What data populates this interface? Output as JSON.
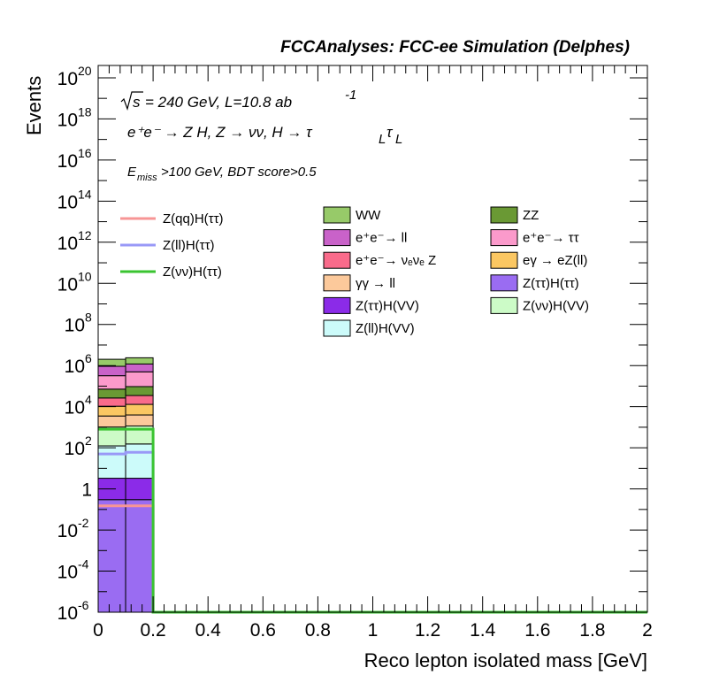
{
  "chart_data": {
    "type": "bar",
    "title": "FCCAnalyses: FCC-ee Simulation (Delphes)",
    "xlabel": "Reco lepton isolated mass [GeV]",
    "ylabel": "Events",
    "xlim": [
      0,
      2
    ],
    "ylim_log10": [
      -6,
      20.6
    ],
    "log_y": true,
    "x_ticks": [
      "0",
      "0.2",
      "0.4",
      "0.6",
      "0.8",
      "1",
      "1.2",
      "1.4",
      "1.6",
      "1.8",
      "2"
    ],
    "y_ticks": [
      {
        "exp": -6,
        "base": "10",
        "sup": "-6"
      },
      {
        "exp": -4,
        "base": "10",
        "sup": "-4"
      },
      {
        "exp": -2,
        "base": "10",
        "sup": "-2"
      },
      {
        "exp": 0,
        "base": "1",
        "sup": ""
      },
      {
        "exp": 2,
        "base": "10",
        "sup": "2"
      },
      {
        "exp": 4,
        "base": "10",
        "sup": "4"
      },
      {
        "exp": 6,
        "base": "10",
        "sup": "6"
      },
      {
        "exp": 8,
        "base": "10",
        "sup": "8"
      },
      {
        "exp": 10,
        "base": "10",
        "sup": "10"
      },
      {
        "exp": 12,
        "base": "10",
        "sup": "12"
      },
      {
        "exp": 14,
        "base": "10",
        "sup": "14"
      },
      {
        "exp": 16,
        "base": "10",
        "sup": "16"
      },
      {
        "exp": 18,
        "base": "10",
        "sup": "18"
      },
      {
        "exp": 20,
        "base": "10",
        "sup": "20"
      }
    ],
    "bins": [
      [
        0.0,
        0.1
      ],
      [
        0.1,
        0.2
      ]
    ],
    "stack": [
      {
        "name": "Z(ττ)H(ττ)",
        "color": "#9a6cf2",
        "values": [
          0.3,
          0.3
        ]
      },
      {
        "name": "Z(ττ)H(VV)",
        "color": "#8b2be8",
        "values": [
          3,
          3
        ]
      },
      {
        "name": "Z(ll)H(VV)",
        "color": "#ccfbfa",
        "values": [
          120,
          150
        ]
      },
      {
        "name": "Z(νν)H(VV)",
        "color": "#ccfbc7",
        "values": [
          900,
          1000
        ]
      },
      {
        "name": "γγ → ll",
        "color": "#fcc99b",
        "values": [
          2500,
          2800
        ]
      },
      {
        "name": "eγ → eZ(ll)",
        "color": "#fbc762",
        "values": [
          7000,
          9000
        ]
      },
      {
        "name": "e⁺e⁻→ νₑνₑ Z",
        "color": "#f96b8b",
        "values": [
          16000,
          22000
        ]
      },
      {
        "name": "ZZ",
        "color": "#6a9934",
        "values": [
          45000,
          60000
        ]
      },
      {
        "name": "e⁺e⁻→ ττ",
        "color": "#fb9acb",
        "values": [
          250000,
          400000
        ]
      },
      {
        "name": "e⁺e⁻→ ll",
        "color": "#c962c9",
        "values": [
          600000,
          700000
        ]
      },
      {
        "name": "WW",
        "color": "#97ca69",
        "values": [
          1100000,
          1200000
        ]
      }
    ],
    "signals": [
      {
        "name": "Z(qq)H(ττ)",
        "color": "#f79595",
        "values": [
          0.15,
          0.15
        ]
      },
      {
        "name": "Z(ll)H(ττ)",
        "color": "#9999f7",
        "values": [
          50,
          60
        ]
      },
      {
        "name": "Z(νν)H(ττ)",
        "color": "#3ac431",
        "values": [
          800,
          800
        ]
      }
    ],
    "annotations": {
      "sqrt_s": "s",
      "lumi": "= 240 GeV, L=10.8 ab",
      "lumi_exp": "-1",
      "process": "e⁺e⁻ → Z H, Z → νν, H → τ",
      "process_sub1": "L",
      "process_tau2": "τ",
      "process_sub2": "L",
      "cut_E": "E",
      "cut_sub": "miss",
      "cut_rest": ">100 GeV, BDT score>0.5"
    },
    "legend_signal": [
      {
        "label": "Z(qq)H(ττ)",
        "color": "#f79595"
      },
      {
        "label": "Z(ll)H(ττ)",
        "color": "#9999f7"
      },
      {
        "label": "Z(νν)H(ττ)",
        "color": "#3ac431"
      }
    ],
    "legend_bkg": [
      {
        "label": "WW",
        "color": "#97ca69"
      },
      {
        "label": "ZZ",
        "color": "#6a9934"
      },
      {
        "label": "e⁺e⁻→ ll",
        "color": "#c962c9"
      },
      {
        "label": "e⁺e⁻→ ττ",
        "color": "#fb9acb"
      },
      {
        "label": "e⁺e⁻→ νₑνₑ Z",
        "color": "#f96b8b"
      },
      {
        "label": "eγ → eZ(ll)",
        "color": "#fbc762"
      },
      {
        "label": "γγ → ll",
        "color": "#fcc99b"
      },
      {
        "label": "Z(ττ)H(ττ)",
        "color": "#9a6cf2"
      },
      {
        "label": "Z(ττ)H(VV)",
        "color": "#8b2be8"
      },
      {
        "label": "Z(νν)H(VV)",
        "color": "#ccfbc7"
      },
      {
        "label": "Z(ll)H(VV)",
        "color": "#ccfbfa"
      }
    ]
  }
}
